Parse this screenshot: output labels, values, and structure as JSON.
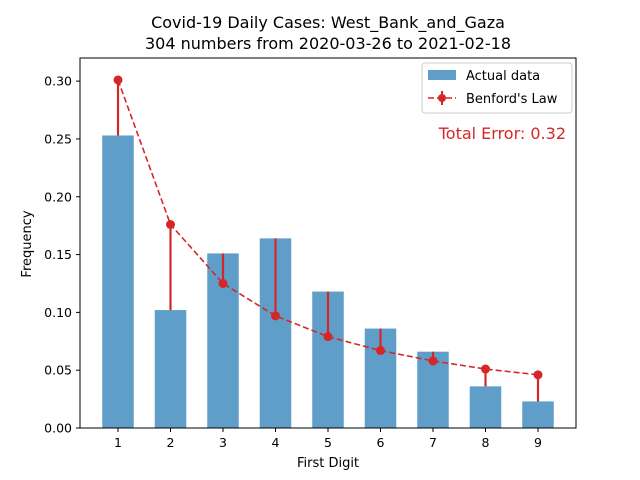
{
  "chart_data": {
    "type": "bar",
    "title": "Covid-19 Daily Cases: West_Bank_and_Gaza",
    "subtitle": "304 numbers from 2020-03-26 to 2021-02-18",
    "xlabel": "First Digit",
    "ylabel": "Frequency",
    "categories": [
      "1",
      "2",
      "3",
      "4",
      "5",
      "6",
      "7",
      "8",
      "9"
    ],
    "ylim": [
      0,
      0.32
    ],
    "yticks": [
      "0.00",
      "0.05",
      "0.10",
      "0.15",
      "0.20",
      "0.25",
      "0.30"
    ],
    "series": [
      {
        "name": "Actual data",
        "type": "bar",
        "color": "#5f9ec8",
        "values": [
          0.253,
          0.102,
          0.151,
          0.164,
          0.118,
          0.086,
          0.066,
          0.036,
          0.023
        ]
      },
      {
        "name": "Benford's Law",
        "type": "line",
        "style": "dashed",
        "color": "#d62728",
        "values": [
          0.301,
          0.176,
          0.125,
          0.097,
          0.079,
          0.067,
          0.058,
          0.051,
          0.046
        ]
      }
    ],
    "annotation": {
      "text": "Total Error: 0.32",
      "color": "#d62728"
    },
    "legend_position": "top-right",
    "grid": false
  }
}
